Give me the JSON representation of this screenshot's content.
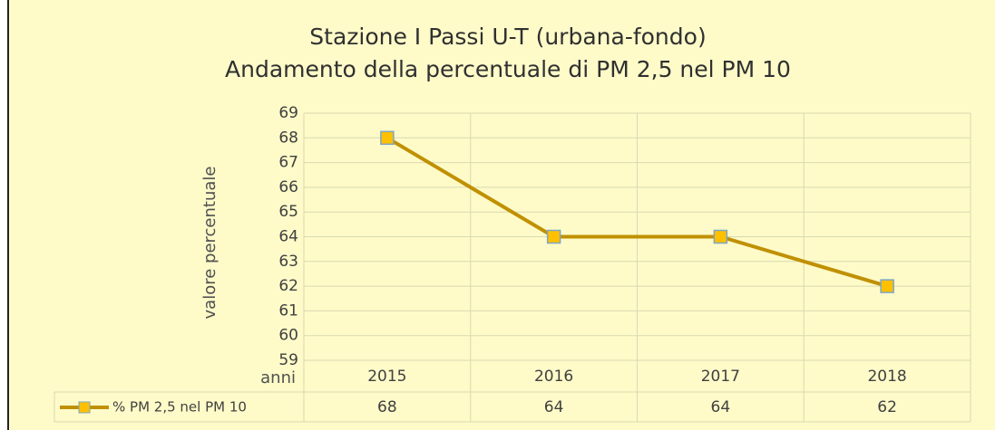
{
  "chart_data": {
    "type": "line",
    "title": "Stazione I Passi U-T (urbana-fondo)",
    "subtitle": "Andamento della percentuale di PM 2,5 nel PM 10",
    "y_label": "valore percentuale",
    "x_label": "anni",
    "categories": [
      "2015",
      "2016",
      "2017",
      "2018"
    ],
    "series": [
      {
        "name": "% PM 2,5 nel PM 10",
        "color": "#c09000",
        "marker_color": "#ffc000",
        "values": [
          68,
          64,
          64,
          62
        ]
      }
    ],
    "ylim": [
      59,
      69
    ],
    "yticks": [
      59,
      60,
      61,
      62,
      63,
      64,
      65,
      66,
      67,
      68,
      69
    ],
    "grid": true
  }
}
